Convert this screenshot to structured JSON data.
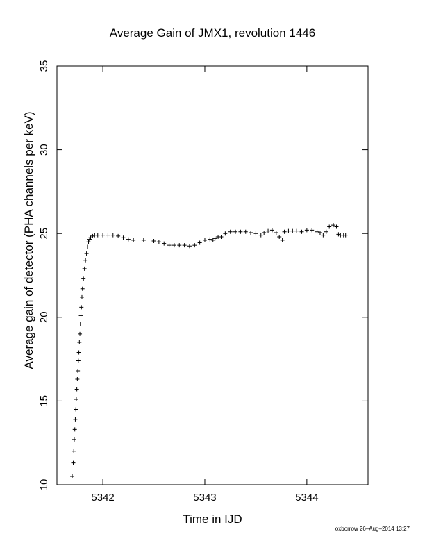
{
  "chart_data": {
    "type": "scatter",
    "title": "Average Gain of JMX1, revolution 1446",
    "xlabel": "Time in IJD",
    "ylabel": "Average gain of detector (PHA channels per keV)",
    "xlim": [
      5341.55,
      5344.6
    ],
    "ylim": [
      10,
      35
    ],
    "xticks": [
      5342,
      5343,
      5344
    ],
    "yticks": [
      10,
      15,
      20,
      25,
      30,
      35
    ],
    "marker": "plus",
    "grid": false,
    "legend": "none",
    "points": [
      [
        5341.7,
        10.5
      ],
      [
        5341.71,
        11.3
      ],
      [
        5341.715,
        12.0
      ],
      [
        5341.72,
        12.7
      ],
      [
        5341.725,
        13.3
      ],
      [
        5341.73,
        13.9
      ],
      [
        5341.735,
        14.5
      ],
      [
        5341.74,
        15.1
      ],
      [
        5341.745,
        15.7
      ],
      [
        5341.75,
        16.3
      ],
      [
        5341.755,
        16.8
      ],
      [
        5341.76,
        17.4
      ],
      [
        5341.765,
        17.9
      ],
      [
        5341.77,
        18.5
      ],
      [
        5341.775,
        19.0
      ],
      [
        5341.78,
        19.6
      ],
      [
        5341.785,
        20.1
      ],
      [
        5341.79,
        20.6
      ],
      [
        5341.795,
        21.2
      ],
      [
        5341.8,
        21.7
      ],
      [
        5341.81,
        22.3
      ],
      [
        5341.82,
        22.9
      ],
      [
        5341.83,
        23.4
      ],
      [
        5341.84,
        23.8
      ],
      [
        5341.85,
        24.2
      ],
      [
        5341.86,
        24.5
      ],
      [
        5341.87,
        24.65
      ],
      [
        5341.88,
        24.75
      ],
      [
        5341.9,
        24.85
      ],
      [
        5341.92,
        24.9
      ],
      [
        5341.95,
        24.9
      ],
      [
        5342.0,
        24.9
      ],
      [
        5342.05,
        24.9
      ],
      [
        5342.1,
        24.9
      ],
      [
        5342.15,
        24.85
      ],
      [
        5342.2,
        24.75
      ],
      [
        5342.25,
        24.65
      ],
      [
        5342.3,
        24.6
      ],
      [
        5342.4,
        24.6
      ],
      [
        5342.5,
        24.55
      ],
      [
        5342.55,
        24.5
      ],
      [
        5342.6,
        24.4
      ],
      [
        5342.65,
        24.3
      ],
      [
        5342.7,
        24.3
      ],
      [
        5342.75,
        24.3
      ],
      [
        5342.8,
        24.3
      ],
      [
        5342.85,
        24.25
      ],
      [
        5342.9,
        24.3
      ],
      [
        5342.95,
        24.45
      ],
      [
        5343.0,
        24.6
      ],
      [
        5343.05,
        24.65
      ],
      [
        5343.08,
        24.6
      ],
      [
        5343.1,
        24.7
      ],
      [
        5343.13,
        24.8
      ],
      [
        5343.16,
        24.8
      ],
      [
        5343.2,
        25.0
      ],
      [
        5343.25,
        25.1
      ],
      [
        5343.3,
        25.1
      ],
      [
        5343.35,
        25.1
      ],
      [
        5343.4,
        25.1
      ],
      [
        5343.45,
        25.05
      ],
      [
        5343.5,
        25.0
      ],
      [
        5343.55,
        24.9
      ],
      [
        5343.58,
        25.05
      ],
      [
        5343.62,
        25.15
      ],
      [
        5343.66,
        25.2
      ],
      [
        5343.7,
        25.05
      ],
      [
        5343.73,
        24.8
      ],
      [
        5343.76,
        24.6
      ],
      [
        5343.78,
        25.1
      ],
      [
        5343.82,
        25.15
      ],
      [
        5343.86,
        25.15
      ],
      [
        5343.9,
        25.15
      ],
      [
        5343.95,
        25.1
      ],
      [
        5344.0,
        25.2
      ],
      [
        5344.05,
        25.2
      ],
      [
        5344.1,
        25.1
      ],
      [
        5344.13,
        25.05
      ],
      [
        5344.16,
        24.9
      ],
      [
        5344.19,
        25.1
      ],
      [
        5344.22,
        25.4
      ],
      [
        5344.26,
        25.5
      ],
      [
        5344.29,
        25.4
      ],
      [
        5344.31,
        24.95
      ],
      [
        5344.33,
        24.9
      ],
      [
        5344.36,
        24.9
      ],
      [
        5344.38,
        24.9
      ]
    ]
  },
  "footer": "oxborrow 26–Aug–2014 13:27"
}
